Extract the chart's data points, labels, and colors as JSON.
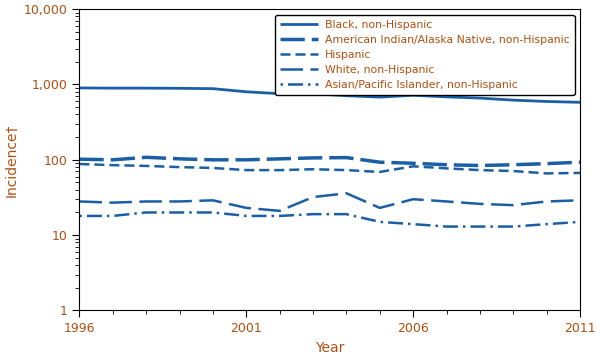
{
  "years": [
    1996,
    1997,
    1998,
    1999,
    2000,
    2001,
    2002,
    2003,
    2004,
    2005,
    2006,
    2007,
    2008,
    2009,
    2010,
    2011
  ],
  "black_non_hispanic": [
    900,
    895,
    895,
    890,
    880,
    800,
    755,
    755,
    710,
    680,
    720,
    685,
    660,
    620,
    595,
    580
  ],
  "ai_an_non_hispanic": [
    102,
    100,
    108,
    103,
    100,
    100,
    103,
    106,
    107,
    93,
    90,
    86,
    84,
    86,
    89,
    93
  ],
  "hispanic": [
    88,
    85,
    83,
    80,
    78,
    73,
    73,
    75,
    73,
    69,
    82,
    77,
    73,
    71,
    66,
    67
  ],
  "white_non_hispanic": [
    28,
    27,
    28,
    28,
    29,
    23,
    21,
    32,
    36,
    23,
    30,
    28,
    26,
    25,
    28,
    29
  ],
  "asian_pi_non_hispanic": [
    18,
    18,
    20,
    20,
    20,
    18,
    18,
    19,
    19,
    15,
    14,
    13,
    13,
    13,
    14,
    15
  ],
  "line_color": "#1a5fa6",
  "text_color": "#b05010",
  "xlabel": "Year",
  "ylabel": "Incidence†",
  "ylim_min": 1,
  "ylim_max": 10000,
  "legend_labels": [
    "Black, non-Hispanic",
    "American Indian/Alaska Native, non-Hispanic",
    "Hispanic",
    "White, non-Hispanic",
    "Asian/Pacific Islander, non-Hispanic"
  ],
  "xticks": [
    1996,
    2001,
    2006,
    2011
  ],
  "xticks_minor": [
    1996,
    1997,
    1998,
    1999,
    2000,
    2001,
    2002,
    2003,
    2004,
    2005,
    2006,
    2007,
    2008,
    2009,
    2010,
    2011
  ],
  "yticks": [
    1,
    10,
    100,
    1000,
    10000
  ]
}
